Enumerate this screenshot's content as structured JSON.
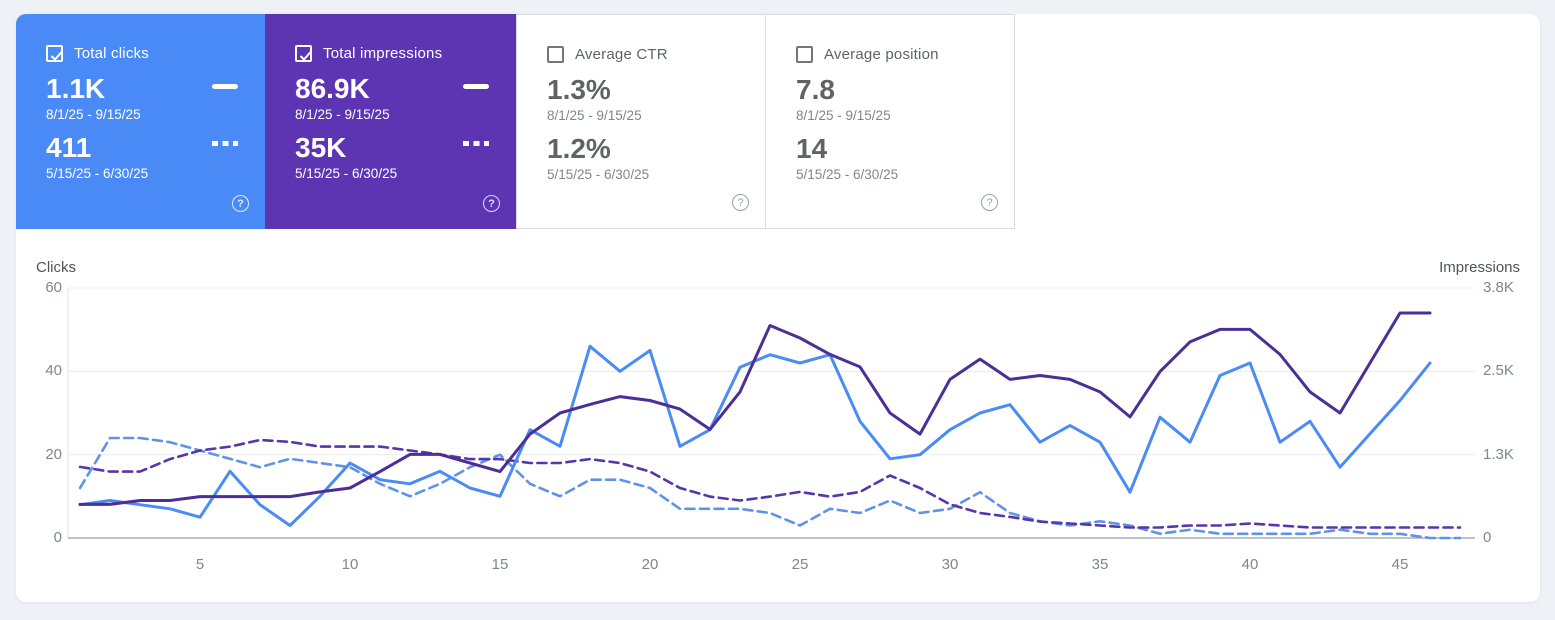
{
  "cards": [
    {
      "label": "Total clicks",
      "checked": true,
      "accent": "#4a8af6",
      "value_current": "1.1K",
      "range_current": "8/1/25 - 9/15/25",
      "value_previous": "411",
      "range_previous": "5/15/25 - 6/30/25",
      "help": "?"
    },
    {
      "label": "Total impressions",
      "checked": true,
      "accent": "#5d35b2",
      "value_current": "86.9K",
      "range_current": "8/1/25 - 9/15/25",
      "value_previous": "35K",
      "range_previous": "5/15/25 - 6/30/25",
      "help": "?"
    },
    {
      "label": "Average CTR",
      "checked": false,
      "accent": "#ffffff",
      "value_current": "1.3%",
      "range_current": "8/1/25 - 9/15/25",
      "value_previous": "1.2%",
      "range_previous": "5/15/25 - 6/30/25",
      "help": "?"
    },
    {
      "label": "Average position",
      "checked": false,
      "accent": "#ffffff",
      "value_current": "7.8",
      "range_current": "8/1/25 - 9/15/25",
      "value_previous": "14",
      "range_previous": "5/15/25 - 6/30/25",
      "help": "?"
    }
  ],
  "chart_data": {
    "type": "line",
    "left_axis": {
      "label": "Clicks",
      "ticks": [
        "60",
        "40",
        "20",
        "0"
      ],
      "max": 60
    },
    "right_axis": {
      "label": "Impressions",
      "ticks": [
        "3.8K",
        "2.5K",
        "1.3K",
        "0"
      ],
      "max": 3800
    },
    "x_ticks": [
      "5",
      "10",
      "15",
      "20",
      "25",
      "30",
      "35",
      "40",
      "45"
    ],
    "x_range": [
      1,
      47
    ],
    "grid": "horizontal",
    "series": [
      {
        "name": "Clicks 8/1/25 - 9/15/25",
        "axis": "left",
        "style": "solid",
        "color": "#4a8bf5",
        "values": [
          8,
          9,
          8,
          7,
          5,
          16,
          8,
          3,
          10,
          18,
          14,
          13,
          16,
          12,
          10,
          26,
          22,
          46,
          40,
          45,
          22,
          26,
          41,
          44,
          42,
          44,
          28,
          19,
          20,
          26,
          30,
          32,
          23,
          27,
          23,
          11,
          29,
          23,
          39,
          42,
          23,
          28,
          17,
          25,
          33,
          42
        ]
      },
      {
        "name": "Impressions 8/1/25 - 9/15/25",
        "axis": "right",
        "style": "solid",
        "color": "#4c2f96",
        "values": [
          510,
          510,
          570,
          570,
          630,
          630,
          630,
          630,
          700,
          760,
          1010,
          1270,
          1270,
          1140,
          1010,
          1580,
          1900,
          2030,
          2150,
          2090,
          1960,
          1650,
          2220,
          3230,
          3040,
          2790,
          2600,
          1900,
          1580,
          2410,
          2720,
          2410,
          2470,
          2410,
          2220,
          1840,
          2530,
          2980,
          3170,
          3170,
          2790,
          2220,
          1900,
          2660,
          3420,
          3420
        ]
      },
      {
        "name": "Clicks 5/15/25 - 6/30/25",
        "axis": "left",
        "style": "dashed",
        "color": "#5f93e8",
        "values": [
          12,
          24,
          24,
          23,
          21,
          19,
          17,
          19,
          18,
          17,
          13,
          10,
          13,
          17,
          20,
          13,
          10,
          14,
          14,
          12,
          7,
          7,
          7,
          6,
          3,
          7,
          6,
          9,
          6,
          7,
          11,
          6,
          4,
          3,
          4,
          3,
          1,
          2,
          1,
          1,
          1,
          1,
          2,
          1,
          1,
          0,
          0
        ]
      },
      {
        "name": "Impressions 5/15/25 - 6/30/25",
        "axis": "right",
        "style": "dashed",
        "color": "#5636a8",
        "values": [
          1080,
          1010,
          1010,
          1200,
          1330,
          1390,
          1490,
          1460,
          1390,
          1390,
          1390,
          1330,
          1270,
          1200,
          1200,
          1140,
          1140,
          1200,
          1140,
          1010,
          760,
          630,
          570,
          630,
          700,
          630,
          700,
          950,
          760,
          510,
          380,
          320,
          250,
          220,
          190,
          160,
          160,
          190,
          190,
          220,
          190,
          160,
          160,
          160,
          160,
          160,
          160
        ]
      }
    ]
  }
}
